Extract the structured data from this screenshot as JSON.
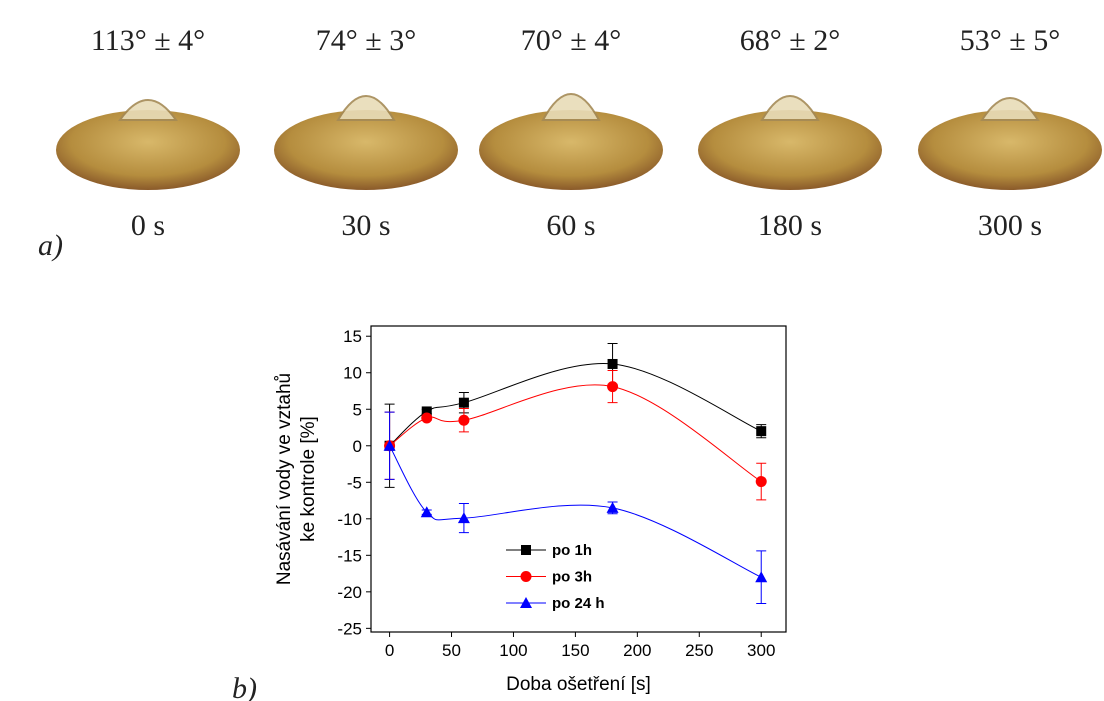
{
  "photos": [
    {
      "angle": "113° ± 4°",
      "time": "0 s"
    },
    {
      "angle": "74° ± 3°",
      "time": "30 s"
    },
    {
      "angle": "70° ± 4°",
      "time": "60 s"
    },
    {
      "angle": "68° ± 2°",
      "time": "180 s"
    },
    {
      "angle": "53° ± 5°",
      "time": "300 s"
    }
  ],
  "panel_labels": [
    "a)",
    "b)"
  ],
  "chart_data": {
    "type": "line",
    "xlabel": "Doba ošetření [s]",
    "ylabel": [
      "Nasávání vody ve vztahů",
      "ke kontrole [%]"
    ],
    "x": [
      0,
      30,
      60,
      180,
      300
    ],
    "series": [
      {
        "name": "po 1h",
        "color": "#000000",
        "marker": "square",
        "values": [
          0,
          4.7,
          5.9,
          11.2,
          2.0
        ],
        "errors": [
          5.7,
          0.3,
          1.4,
          2.8,
          0.9
        ]
      },
      {
        "name": "po 3h",
        "color": "#ff0000",
        "marker": "circle",
        "values": [
          0,
          3.8,
          3.5,
          8.1,
          -4.9
        ],
        "errors": [
          4.6,
          0.3,
          1.6,
          2.2,
          2.5
        ]
      },
      {
        "name": "po 24 h",
        "color": "#0000ff",
        "marker": "triangle",
        "values": [
          0,
          -9.1,
          -9.9,
          -8.5,
          -18
        ],
        "errors": [
          4.6,
          0.3,
          2.0,
          0.8,
          3.6
        ]
      }
    ],
    "xlim": [
      -15,
      320
    ],
    "xticks": [
      0,
      50,
      100,
      150,
      200,
      250,
      300
    ],
    "ylim": [
      -25.5,
      16.4
    ],
    "yticks": [
      -25,
      -20,
      -15,
      -10,
      -5,
      0,
      5,
      10,
      15
    ],
    "smooth": true,
    "legend": "lower-center"
  }
}
